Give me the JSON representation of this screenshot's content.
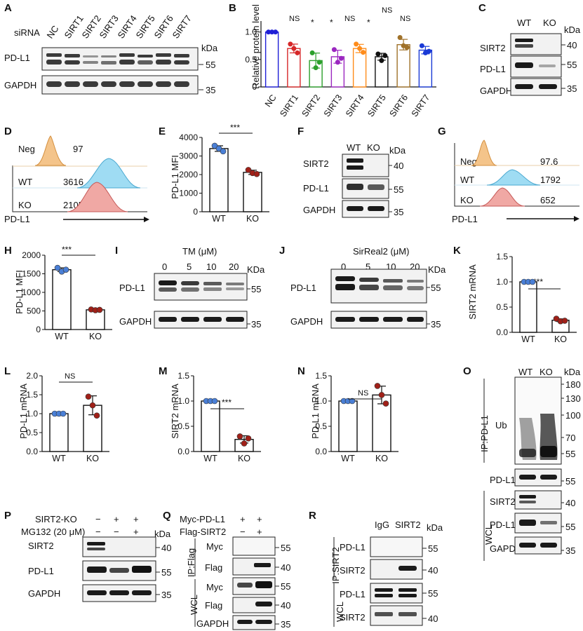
{
  "panels": {
    "A": {
      "letter": "A",
      "treatment": "siRNA",
      "lanes": [
        "NC",
        "SIRT1",
        "SIRT2",
        "SIRT3",
        "SIRT4",
        "SIRT5",
        "SIRT6",
        "SIRT7"
      ],
      "bands": [
        "PD-L1",
        "GAPDH"
      ],
      "kda_unit": "kDa",
      "markers": [
        "55",
        "35"
      ]
    },
    "B": {
      "letter": "B",
      "sig": [
        "",
        "NS",
        "*",
        "*",
        "NS",
        "*",
        "NS",
        "NS"
      ]
    },
    "C": {
      "letter": "C",
      "lanes": [
        "WT",
        "KO"
      ],
      "bands": [
        "SIRT2",
        "PD-L1",
        "GAPDH"
      ],
      "kda_unit": "kDa",
      "markers": [
        "40",
        "55",
        "35"
      ]
    },
    "D": {
      "letter": "D",
      "rows": [
        "Neg",
        "WT",
        "KO"
      ],
      "values": [
        "97",
        "3616",
        "2105"
      ],
      "xlabel": "PD-L1"
    },
    "E": {
      "letter": "E",
      "sig": "***"
    },
    "F": {
      "letter": "F",
      "lanes": [
        "WT",
        "KO"
      ],
      "bands": [
        "SIRT2",
        "PD-L1",
        "GAPDH"
      ],
      "kda_unit": "kDa",
      "markers": [
        "40",
        "55",
        "35"
      ]
    },
    "G": {
      "letter": "G",
      "rows": [
        "Neg.",
        "WT",
        "KO"
      ],
      "values": [
        "97.6",
        "1792",
        "652"
      ],
      "xlabel": "PD-L1"
    },
    "H": {
      "letter": "H",
      "sig": "***"
    },
    "I": {
      "letter": "I",
      "treatment": "TM (μM)",
      "lanes": [
        "0",
        "5",
        "10",
        "20"
      ],
      "bands": [
        "PD-L1",
        "GAPDH"
      ],
      "kda_unit": "KDa",
      "markers": [
        "55",
        "35"
      ]
    },
    "J": {
      "letter": "J",
      "treatment": "SirReal2 (μM)",
      "lanes": [
        "0",
        "5",
        "10",
        "20"
      ],
      "bands": [
        "PD-L1",
        "GAPDH"
      ],
      "kda_unit": "KDa",
      "markers": [
        "55",
        "35"
      ]
    },
    "K": {
      "letter": "K",
      "sig": "***"
    },
    "L": {
      "letter": "L",
      "sig": "NS"
    },
    "M": {
      "letter": "M",
      "sig": "***"
    },
    "N": {
      "letter": "N",
      "sig": "NS"
    },
    "O": {
      "letter": "O",
      "lanes": [
        "WT",
        "KO"
      ],
      "kda_unit": "kDa",
      "group_ip": "IP:PD-L1",
      "group_wcl": "WCL",
      "bands": [
        "Ub",
        "PD-L1",
        "SIRT2",
        "PD-L1",
        "GAPDH"
      ],
      "markers": [
        "180",
        "130",
        "100",
        "70",
        "55",
        "55",
        "40",
        "55",
        "35"
      ]
    },
    "P": {
      "letter": "P",
      "conditions": [
        "SIRT2-KO",
        "MG132 (20 μM)"
      ],
      "signs": [
        [
          "−",
          "+",
          "+"
        ],
        [
          "−",
          "−",
          "+"
        ]
      ],
      "bands": [
        "SIRT2",
        "PD-L1",
        "GAPDH"
      ],
      "kda_unit": "kDa",
      "markers": [
        "40",
        "55",
        "35"
      ]
    },
    "Q": {
      "letter": "Q",
      "conditions": [
        "Myc-PD-L1",
        "Flag-SIRT2"
      ],
      "signs": [
        [
          "+",
          "+"
        ],
        [
          "−",
          "+"
        ]
      ],
      "group_ip": "IP:Flag",
      "group_wcl": "WCL",
      "bands": [
        "Myc",
        "Flag",
        "Myc",
        "Flag",
        "GAPDH"
      ],
      "markers": [
        "55",
        "40",
        "55",
        "40",
        "35"
      ]
    },
    "R": {
      "letter": "R",
      "lanes": [
        "IgG",
        "SIRT2"
      ],
      "kda_unit": "kDa",
      "group_ip": "IP:SIRT2",
      "group_wcl": "WCL",
      "bands": [
        "PD-L1",
        "SIRT2",
        "PD-L1",
        "SIRT2"
      ],
      "markers": [
        "55",
        "40",
        "55",
        "40"
      ]
    }
  },
  "chart_data": [
    {
      "panel": "B",
      "type": "bar",
      "categories": [
        "NC",
        "SIRT1",
        "SIRT2",
        "SIRT3",
        "SIRT4",
        "SIRT5",
        "SIRT6",
        "SIRT7"
      ],
      "values": [
        1.0,
        0.7,
        0.48,
        0.55,
        0.7,
        0.55,
        0.77,
        0.67
      ],
      "points": [
        [
          1.0,
          1.0,
          1.0
        ],
        [
          0.78,
          0.7,
          0.62
        ],
        [
          0.62,
          0.35,
          0.45
        ],
        [
          0.68,
          0.45,
          0.52
        ],
        [
          0.78,
          0.7,
          0.63
        ],
        [
          0.6,
          0.48,
          0.57
        ],
        [
          0.9,
          0.75,
          0.72
        ],
        [
          0.75,
          0.62,
          0.65
        ]
      ],
      "ylabel": "Relative protein level",
      "ylim": [
        0,
        1.2
      ],
      "yticks": [
        "0",
        "0.5",
        "1.0"
      ],
      "colors": [
        "#1f1fd6",
        "#d62728",
        "#2ca02c",
        "#9b27c0",
        "#ff8c1a",
        "#111111",
        "#a0722a",
        "#1a3ad6"
      ]
    },
    {
      "panel": "E",
      "type": "bar",
      "categories": [
        "WT",
        "KO"
      ],
      "values": [
        3400,
        2120
      ],
      "points": [
        [
          3550,
          3400,
          3250
        ],
        [
          2250,
          2080,
          2030
        ]
      ],
      "ylabel": "PD-L1 MFI",
      "ylim": [
        0,
        4000
      ],
      "yticks": [
        "0",
        "1000",
        "2000",
        "3000",
        "4000"
      ],
      "colors": [
        "#4a7fd6",
        "#a02018"
      ]
    },
    {
      "panel": "H",
      "type": "bar",
      "categories": [
        "WT",
        "KO"
      ],
      "values": [
        1610,
        530
      ],
      "points": [
        [
          1660,
          1560,
          1610
        ],
        [
          540,
          520,
          530
        ]
      ],
      "ylabel": "PD-L1 MFI",
      "ylim": [
        0,
        2000
      ],
      "yticks": [
        "0",
        "500",
        "1000",
        "1500",
        "2000"
      ],
      "colors": [
        "#4a7fd6",
        "#a02018"
      ]
    },
    {
      "panel": "K",
      "type": "bar",
      "categories": [
        "WT",
        "KO"
      ],
      "values": [
        1.0,
        0.24
      ],
      "points": [
        [
          1.0,
          1.0,
          1.0
        ],
        [
          0.27,
          0.22,
          0.23
        ]
      ],
      "ylabel": "SIRT2 mRNA",
      "ylim": [
        0,
        1.5
      ],
      "yticks": [
        "0.0",
        "0.5",
        "1.0",
        "1.5"
      ],
      "colors": [
        "#4a7fd6",
        "#a02018"
      ]
    },
    {
      "panel": "L",
      "type": "bar",
      "categories": [
        "WT",
        "KO"
      ],
      "values": [
        1.0,
        1.22
      ],
      "points": [
        [
          1.0,
          1.0,
          1.0
        ],
        [
          1.45,
          1.22,
          0.95
        ]
      ],
      "ylabel": "PD-L1 mRNA",
      "ylim": [
        0,
        2.0
      ],
      "yticks": [
        "0.0",
        "0.5",
        "1.0",
        "1.5",
        "2.0"
      ],
      "colors": [
        "#4a7fd6",
        "#a02018"
      ]
    },
    {
      "panel": "M",
      "type": "bar",
      "categories": [
        "WT",
        "KO"
      ],
      "values": [
        1.0,
        0.24
      ],
      "points": [
        [
          1.0,
          1.0,
          1.0
        ],
        [
          0.3,
          0.16,
          0.26
        ]
      ],
      "ylabel": "SIRT2 mRNA",
      "ylim": [
        0,
        1.5
      ],
      "yticks": [
        "0.0",
        "0.5",
        "1.0",
        "1.5"
      ],
      "colors": [
        "#4a7fd6",
        "#a02018"
      ]
    },
    {
      "panel": "N",
      "type": "bar",
      "categories": [
        "WT",
        "KO"
      ],
      "values": [
        1.0,
        1.12
      ],
      "points": [
        [
          1.0,
          1.0,
          1.0
        ],
        [
          1.3,
          1.12,
          0.95
        ]
      ],
      "ylabel": "PD-L1 mRNA",
      "ylim": [
        0,
        1.5
      ],
      "yticks": [
        "0.0",
        "0.5",
        "1.0",
        "1.5"
      ],
      "colors": [
        "#4a7fd6",
        "#a02018"
      ]
    }
  ]
}
